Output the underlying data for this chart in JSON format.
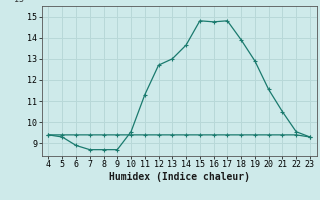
{
  "xlabel": "Humidex (Indice chaleur)",
  "bg_color": "#ceeaea",
  "grid_color": "#b8d8d8",
  "line_color": "#1a7a6e",
  "xlim": [
    3.5,
    23.5
  ],
  "ylim": [
    8.4,
    15.5
  ],
  "xticks": [
    4,
    5,
    6,
    7,
    8,
    9,
    10,
    11,
    12,
    13,
    14,
    15,
    16,
    17,
    18,
    19,
    20,
    21,
    22,
    23
  ],
  "yticks": [
    9,
    10,
    11,
    12,
    13,
    14,
    15
  ],
  "curve1_x": [
    4,
    5,
    6,
    7,
    8,
    9,
    10,
    11,
    12,
    13,
    14,
    15,
    16,
    17,
    18,
    19,
    20,
    21,
    22,
    23
  ],
  "curve1_y": [
    9.4,
    9.3,
    8.9,
    8.7,
    8.7,
    8.7,
    9.55,
    11.3,
    12.7,
    13.0,
    13.65,
    14.8,
    14.75,
    14.8,
    13.9,
    12.9,
    11.55,
    10.5,
    9.55,
    9.3
  ],
  "curve2_x": [
    4,
    5,
    6,
    7,
    8,
    9,
    10,
    11,
    12,
    13,
    14,
    15,
    16,
    17,
    18,
    19,
    20,
    21,
    22,
    23
  ],
  "curve2_y": [
    9.4,
    9.4,
    9.4,
    9.4,
    9.4,
    9.4,
    9.4,
    9.4,
    9.4,
    9.4,
    9.4,
    9.4,
    9.4,
    9.4,
    9.4,
    9.4,
    9.4,
    9.4,
    9.4,
    9.3
  ]
}
